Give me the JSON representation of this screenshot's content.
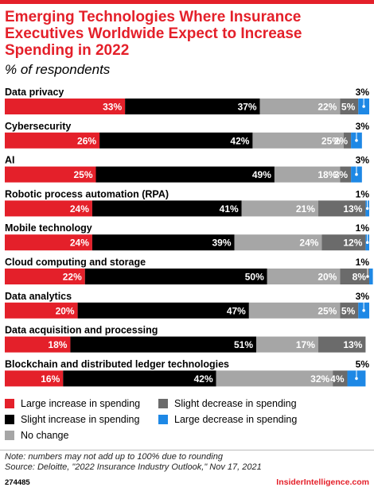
{
  "title": "Emerging Technologies Where Insurance Executives Worldwide Expect to Increase Spending in 2022",
  "subtitle": "% of respondents",
  "colors": {
    "large_increase": "#e4202a",
    "slight_increase": "#000000",
    "no_change": "#a6a6a6",
    "slight_decrease": "#6b6b6b",
    "large_decrease": "#1e88e5",
    "accent": "#e4202a"
  },
  "chart_data": {
    "type": "bar",
    "orientation": "horizontal",
    "stacked": true,
    "value_format": "percent",
    "xlim": [
      0,
      100
    ],
    "categories": [
      "Data privacy",
      "Cybersecurity",
      "AI",
      "Robotic process automation (RPA)",
      "Mobile technology",
      "Cloud computing and storage",
      "Data analytics",
      "Data acquisition and processing",
      "Blockchain and distributed ledger technologies"
    ],
    "series": [
      {
        "name": "Large increase in spending",
        "color": "#e4202a",
        "values": [
          33,
          26,
          25,
          24,
          24,
          22,
          20,
          18,
          16
        ]
      },
      {
        "name": "Slight increase in spending",
        "color": "#000000",
        "values": [
          37,
          42,
          49,
          41,
          39,
          50,
          47,
          51,
          42
        ]
      },
      {
        "name": "No change",
        "color": "#a6a6a6",
        "values": [
          22,
          25,
          18,
          21,
          24,
          20,
          25,
          17,
          32
        ]
      },
      {
        "name": "Slight decrease in spending",
        "color": "#6b6b6b",
        "values": [
          5,
          2,
          3,
          13,
          12,
          8,
          5,
          13,
          4
        ]
      },
      {
        "name": "Large decrease in spending",
        "color": "#1e88e5",
        "values": [
          3,
          3,
          3,
          1,
          1,
          1,
          3,
          0,
          5
        ]
      }
    ],
    "legend": {
      "placement": "bottom",
      "entries": [
        "Large increase in spending",
        "Slight decrease in spending",
        "Slight increase in spending",
        "Large decrease in spending",
        "No change"
      ]
    }
  },
  "note": "Note: numbers may not add up to 100% due to rounding",
  "source": "Source: Deloitte, \"2022 Insurance Industry Outlook,\" Nov 17, 2021",
  "footer": {
    "chart_id": "274485",
    "brand": "InsiderIntelligence.com"
  }
}
